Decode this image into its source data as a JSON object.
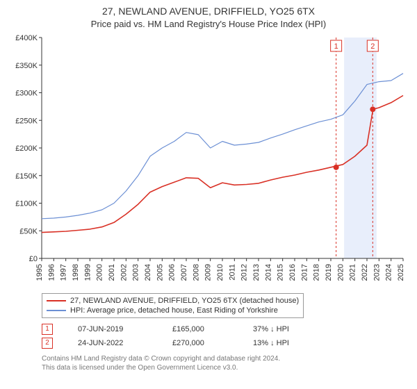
{
  "title_line1": "27, NEWLAND AVENUE, DRIFFIELD, YO25 6TX",
  "title_line2": "Price paid vs. HM Land Registry's House Price Index (HPI)",
  "chart": {
    "type": "line",
    "background_color": "#ffffff",
    "grid": false,
    "axis_color": "#333333",
    "label_color": "#333333",
    "label_fontsize": 11,
    "x": {
      "min": 1995,
      "max": 2025,
      "ticks": [
        1995,
        1996,
        1997,
        1998,
        1999,
        2000,
        2001,
        2002,
        2003,
        2004,
        2005,
        2006,
        2007,
        2008,
        2009,
        2010,
        2011,
        2012,
        2013,
        2014,
        2015,
        2016,
        2017,
        2018,
        2019,
        2020,
        2021,
        2022,
        2023,
        2024,
        2025
      ],
      "tick_label_rotation": -90
    },
    "y": {
      "min": 0,
      "max": 400000,
      "ticks": [
        0,
        50000,
        100000,
        150000,
        200000,
        250000,
        300000,
        350000,
        400000
      ],
      "tick_labels": [
        "£0",
        "£50K",
        "£100K",
        "£150K",
        "£200K",
        "£250K",
        "£300K",
        "£350K",
        "£400K"
      ]
    },
    "highlight_band": {
      "x_from": 2020.1,
      "x_to": 2022.8,
      "fill": "#e8eefb"
    },
    "series": [
      {
        "id": "hpi",
        "label": "HPI: Average price, detached house, East Riding of Yorkshire",
        "color": "#6b8fd4",
        "line_width": 1.2,
        "points": [
          [
            1995,
            72000
          ],
          [
            1996,
            73000
          ],
          [
            1997,
            75000
          ],
          [
            1998,
            78000
          ],
          [
            1999,
            82000
          ],
          [
            2000,
            88000
          ],
          [
            2001,
            100000
          ],
          [
            2002,
            122000
          ],
          [
            2003,
            150000
          ],
          [
            2004,
            185000
          ],
          [
            2005,
            200000
          ],
          [
            2006,
            212000
          ],
          [
            2007,
            228000
          ],
          [
            2008,
            224000
          ],
          [
            2009,
            200000
          ],
          [
            2010,
            212000
          ],
          [
            2011,
            205000
          ],
          [
            2012,
            207000
          ],
          [
            2013,
            210000
          ],
          [
            2014,
            218000
          ],
          [
            2015,
            225000
          ],
          [
            2016,
            233000
          ],
          [
            2017,
            240000
          ],
          [
            2018,
            247000
          ],
          [
            2019,
            252000
          ],
          [
            2020,
            260000
          ],
          [
            2021,
            285000
          ],
          [
            2022,
            315000
          ],
          [
            2023,
            320000
          ],
          [
            2024,
            322000
          ],
          [
            2025,
            335000
          ]
        ]
      },
      {
        "id": "address",
        "label": "27, NEWLAND AVENUE, DRIFFIELD, YO25 6TX (detached house)",
        "color": "#d93025",
        "line_width": 1.6,
        "points": [
          [
            1995,
            47000
          ],
          [
            1996,
            48000
          ],
          [
            1997,
            49000
          ],
          [
            1998,
            51000
          ],
          [
            1999,
            53000
          ],
          [
            2000,
            57000
          ],
          [
            2001,
            65000
          ],
          [
            2002,
            80000
          ],
          [
            2003,
            98000
          ],
          [
            2004,
            120000
          ],
          [
            2005,
            130000
          ],
          [
            2006,
            138000
          ],
          [
            2007,
            146000
          ],
          [
            2008,
            145000
          ],
          [
            2009,
            128000
          ],
          [
            2010,
            137000
          ],
          [
            2011,
            133000
          ],
          [
            2012,
            134000
          ],
          [
            2013,
            136000
          ],
          [
            2014,
            142000
          ],
          [
            2015,
            147000
          ],
          [
            2016,
            151000
          ],
          [
            2017,
            156000
          ],
          [
            2018,
            160000
          ],
          [
            2019,
            165000
          ],
          [
            2020,
            170000
          ],
          [
            2021,
            185000
          ],
          [
            2022,
            205000
          ],
          [
            2022.5,
            270000
          ],
          [
            2023,
            273000
          ],
          [
            2024,
            282000
          ],
          [
            2025,
            295000
          ]
        ]
      }
    ],
    "vlines": [
      {
        "x": 2019.44,
        "color": "#d93025",
        "dash": "3,3",
        "box_value": "1",
        "box_border": "#d93025",
        "box_text": "#d93025"
      },
      {
        "x": 2022.48,
        "color": "#d93025",
        "dash": "3,3",
        "box_value": "2",
        "box_border": "#d93025",
        "box_text": "#d93025"
      }
    ],
    "sale_markers": [
      {
        "x": 2019.44,
        "y": 165000,
        "color": "#d93025",
        "radius": 4
      },
      {
        "x": 2022.48,
        "y": 270000,
        "color": "#d93025",
        "radius": 4
      }
    ]
  },
  "legend": {
    "rows": [
      {
        "color": "#d93025",
        "label": "27, NEWLAND AVENUE, DRIFFIELD, YO25 6TX (detached house)"
      },
      {
        "color": "#6b8fd4",
        "label": "HPI: Average price, detached house, East Riding of Yorkshire"
      }
    ]
  },
  "sales": [
    {
      "marker": "1",
      "marker_color": "#d93025",
      "date": "07-JUN-2019",
      "price": "£165,000",
      "delta": "37% ↓ HPI"
    },
    {
      "marker": "2",
      "marker_color": "#d93025",
      "date": "24-JUN-2022",
      "price": "£270,000",
      "delta": "13% ↓ HPI"
    }
  ],
  "footer_line1": "Contains HM Land Registry data © Crown copyright and database right 2024.",
  "footer_line2": "This data is licensed under the Open Government Licence v3.0."
}
